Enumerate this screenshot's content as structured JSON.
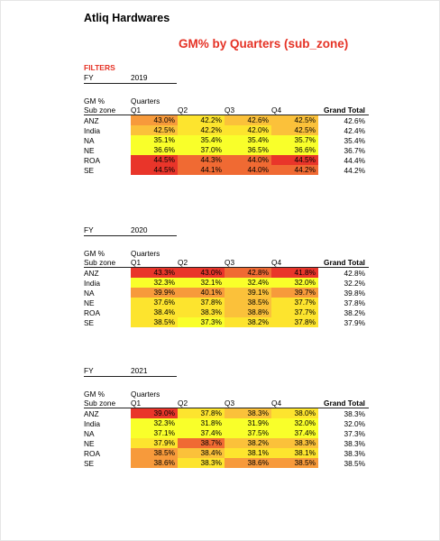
{
  "company": "Atliq Hardwares",
  "title": "GM% by Quarters (sub_zone)",
  "filters_label": "FILTERS",
  "column_headers": {
    "fy": "FY",
    "gm": "GM %",
    "quarters": "Quarters",
    "sub_zone": "Sub zone",
    "q1": "Q1",
    "q2": "Q2",
    "q3": "Q3",
    "q4": "Q4",
    "grand_total": "Grand Total"
  },
  "colors": {
    "c1": "#f9ff2a",
    "c2": "#fde42e",
    "c3": "#fbc13a",
    "c4": "#f79a3b",
    "c5": "#f06a33",
    "c6": "#e9352a"
  },
  "tables": [
    {
      "fy": "2019",
      "rows": [
        {
          "sub": "ANZ",
          "q": [
            "43.0%",
            "42.2%",
            "42.6%",
            "42.5%"
          ],
          "shade": [
            "c4",
            "c2",
            "c3",
            "c3"
          ],
          "total": "42.6%"
        },
        {
          "sub": "India",
          "q": [
            "42.5%",
            "42.2%",
            "42.0%",
            "42.5%"
          ],
          "shade": [
            "c3",
            "c2",
            "c2",
            "c3"
          ],
          "total": "42.4%"
        },
        {
          "sub": "NA",
          "q": [
            "35.1%",
            "35.4%",
            "35.4%",
            "35.7%"
          ],
          "shade": [
            "c1",
            "c1",
            "c1",
            "c1"
          ],
          "total": "35.4%"
        },
        {
          "sub": "NE",
          "q": [
            "36.6%",
            "37.0%",
            "36.5%",
            "36.6%"
          ],
          "shade": [
            "c1",
            "c1",
            "c1",
            "c1"
          ],
          "total": "36.7%"
        },
        {
          "sub": "ROA",
          "q": [
            "44.5%",
            "44.3%",
            "44.0%",
            "44.5%"
          ],
          "shade": [
            "c6",
            "c5",
            "c5",
            "c6"
          ],
          "total": "44.4%"
        },
        {
          "sub": "SE",
          "q": [
            "44.5%",
            "44.1%",
            "44.0%",
            "44.2%"
          ],
          "shade": [
            "c6",
            "c5",
            "c5",
            "c5"
          ],
          "total": "44.2%"
        }
      ]
    },
    {
      "fy": "2020",
      "rows": [
        {
          "sub": "ANZ",
          "q": [
            "43.3%",
            "43.0%",
            "42.8%",
            "41.8%"
          ],
          "shade": [
            "c6",
            "c6",
            "c5",
            "c6"
          ],
          "total": "42.8%"
        },
        {
          "sub": "India",
          "q": [
            "32.3%",
            "32.1%",
            "32.4%",
            "32.0%"
          ],
          "shade": [
            "c1",
            "c1",
            "c1",
            "c1"
          ],
          "total": "32.2%"
        },
        {
          "sub": "NA",
          "q": [
            "39.9%",
            "40.1%",
            "39.1%",
            "39.7%"
          ],
          "shade": [
            "c4",
            "c4",
            "c3",
            "c4"
          ],
          "total": "39.8%"
        },
        {
          "sub": "NE",
          "q": [
            "37.6%",
            "37.8%",
            "38.5%",
            "37.7%"
          ],
          "shade": [
            "c2",
            "c2",
            "c3",
            "c2"
          ],
          "total": "37.8%"
        },
        {
          "sub": "ROA",
          "q": [
            "38.4%",
            "38.3%",
            "38.8%",
            "37.7%"
          ],
          "shade": [
            "c2",
            "c2",
            "c3",
            "c2"
          ],
          "total": "38.2%"
        },
        {
          "sub": "SE",
          "q": [
            "38.5%",
            "37.3%",
            "38.2%",
            "37.8%"
          ],
          "shade": [
            "c2",
            "c1",
            "c2",
            "c2"
          ],
          "total": "37.9%"
        }
      ]
    },
    {
      "fy": "2021",
      "rows": [
        {
          "sub": "ANZ",
          "q": [
            "39.0%",
            "37.8%",
            "38.3%",
            "38.0%"
          ],
          "shade": [
            "c6",
            "c2",
            "c3",
            "c2"
          ],
          "total": "38.3%"
        },
        {
          "sub": "India",
          "q": [
            "32.3%",
            "31.8%",
            "31.9%",
            "32.0%"
          ],
          "shade": [
            "c1",
            "c1",
            "c1",
            "c1"
          ],
          "total": "32.0%"
        },
        {
          "sub": "NA",
          "q": [
            "37.1%",
            "37.4%",
            "37.5%",
            "37.4%"
          ],
          "shade": [
            "c1",
            "c1",
            "c1",
            "c1"
          ],
          "total": "37.3%"
        },
        {
          "sub": "NE",
          "q": [
            "37.9%",
            "38.7%",
            "38.2%",
            "38.3%"
          ],
          "shade": [
            "c2",
            "c5",
            "c3",
            "c3"
          ],
          "total": "38.3%"
        },
        {
          "sub": "ROA",
          "q": [
            "38.5%",
            "38.4%",
            "38.1%",
            "38.1%"
          ],
          "shade": [
            "c4",
            "c3",
            "c2",
            "c2"
          ],
          "total": "38.3%"
        },
        {
          "sub": "SE",
          "q": [
            "38.6%",
            "38.3%",
            "38.6%",
            "38.5%"
          ],
          "shade": [
            "c4",
            "c2",
            "c4",
            "c4"
          ],
          "total": "38.5%"
        }
      ]
    }
  ]
}
